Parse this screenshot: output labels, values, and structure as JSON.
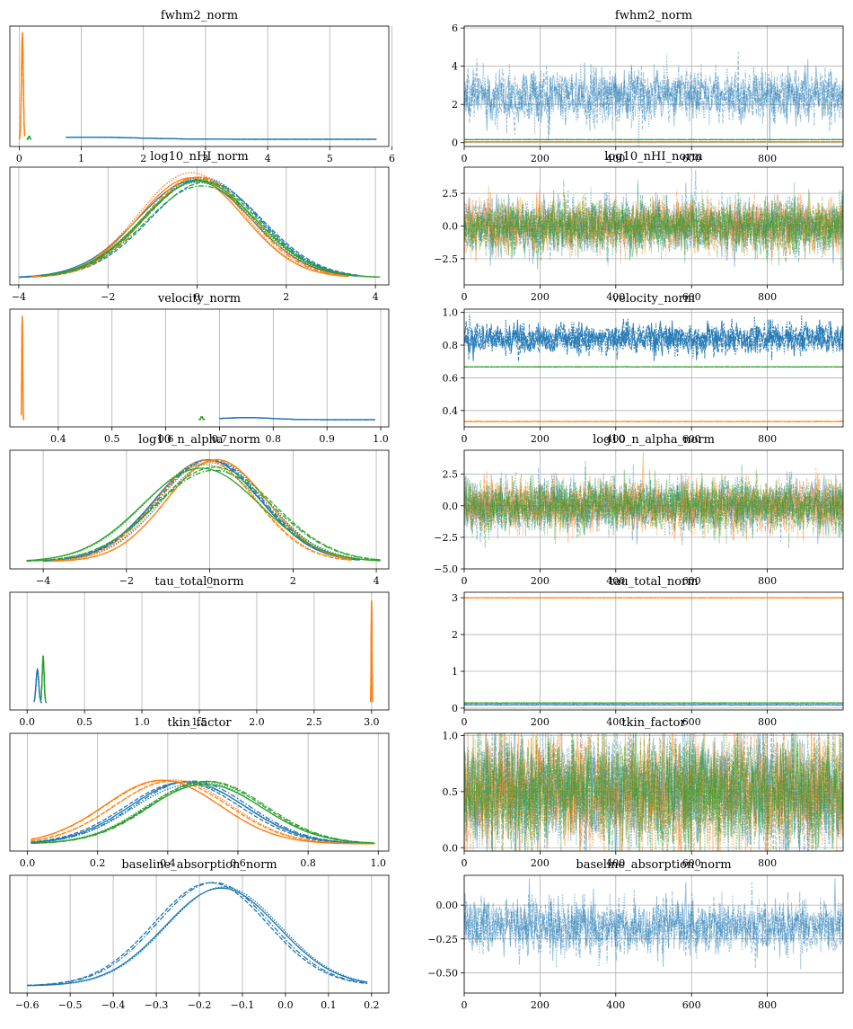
{
  "colors": {
    "chain0": "#1f77b4",
    "chain1": "#ff7f0e",
    "chain2": "#2ca02c",
    "grid": "#b0b0b0",
    "frame": "#000000"
  },
  "chart_data": [
    {
      "type": "line",
      "title": "fwhm2_norm",
      "xlim": [
        -0.15,
        5.95
      ],
      "xticks": [
        "0",
        "1",
        "2",
        "3",
        "4",
        "5",
        "6"
      ],
      "ytick_labels": [],
      "grid": "x",
      "densities": [
        {
          "chain": 0,
          "support": [
            0.75,
            5.75
          ],
          "mode": 1.1,
          "peak": 0.02
        },
        {
          "chain": 1,
          "support": [
            0.0,
            0.09
          ],
          "mode": 0.05,
          "peak": 1.0
        },
        {
          "chain": 2,
          "support": [
            0.12,
            0.19
          ],
          "mode": 0.16,
          "peak": 0.03
        }
      ]
    },
    {
      "type": "line",
      "title": "fwhm2_norm",
      "xlim": [
        0,
        1000
      ],
      "ylim": [
        -0.2,
        6.1
      ],
      "xticks": [
        "0",
        "200",
        "400",
        "600",
        "800"
      ],
      "yticks": [
        "0",
        "2",
        "4",
        "6"
      ],
      "grid": "both",
      "traces": [
        {
          "chain": 0,
          "center": 2.45,
          "spread": 0.7
        },
        {
          "chain": 1,
          "center": 0.05,
          "spread": 0.005
        },
        {
          "chain": 2,
          "center": 0.16,
          "spread": 0.005
        }
      ]
    },
    {
      "type": "line",
      "title": "log10_nHI_norm",
      "xlim": [
        -4.2,
        4.3
      ],
      "xticks": [
        "−4",
        "−2",
        "0",
        "2",
        "4"
      ],
      "ytick_labels": [],
      "grid": "x",
      "densities": [
        {
          "chain": 0,
          "support": [
            -4.0,
            3.6
          ],
          "mode": 0.05,
          "peak": 0.97
        },
        {
          "chain": 1,
          "support": [
            -3.7,
            3.4
          ],
          "mode": -0.05,
          "peak": 1.0
        },
        {
          "chain": 2,
          "support": [
            -3.5,
            4.1
          ],
          "mode": 0.0,
          "peak": 0.93
        }
      ]
    },
    {
      "type": "line",
      "title": "log10_nHI_norm",
      "xlim": [
        0,
        1000
      ],
      "ylim": [
        -4.5,
        4.5
      ],
      "xticks": [
        "0",
        "200",
        "400",
        "600",
        "800"
      ],
      "yticks": [
        "−2.5",
        "0.0",
        "2.5"
      ],
      "grid": "both",
      "traces": [
        {
          "chain": 0,
          "center": 0.0,
          "spread": 1.0
        },
        {
          "chain": 1,
          "center": 0.0,
          "spread": 1.0
        },
        {
          "chain": 2,
          "center": 0.0,
          "spread": 1.0
        }
      ]
    },
    {
      "type": "line",
      "title": "velocity_norm",
      "xlim": [
        0.31,
        1.015
      ],
      "xticks": [
        "0.4",
        "0.5",
        "0.6",
        "0.7",
        "0.8",
        "0.9",
        "1.0"
      ],
      "ytick_labels": [],
      "grid": "x",
      "densities": [
        {
          "chain": 0,
          "support": [
            0.7,
            0.99
          ],
          "mode": 0.75,
          "peak": 0.02
        },
        {
          "chain": 1,
          "support": [
            0.331,
            0.336
          ],
          "mode": 0.333,
          "peak": 1.0
        },
        {
          "chain": 2,
          "support": [
            0.662,
            0.672
          ],
          "mode": 0.667,
          "peak": 0.03
        }
      ]
    },
    {
      "type": "line",
      "title": "velocity_norm",
      "xlim": [
        0,
        1000
      ],
      "ylim": [
        0.3,
        1.02
      ],
      "xticks": [
        "0",
        "200",
        "400",
        "600",
        "800"
      ],
      "yticks": [
        "0.4",
        "0.6",
        "0.8",
        "1.0"
      ],
      "grid": "both",
      "traces": [
        {
          "chain": 0,
          "center": 0.84,
          "spread": 0.045
        },
        {
          "chain": 1,
          "center": 0.333,
          "spread": 0.001
        },
        {
          "chain": 2,
          "center": 0.667,
          "spread": 0.001
        }
      ]
    },
    {
      "type": "line",
      "title": "log10_n_alpha_norm",
      "xlim": [
        -4.8,
        4.3
      ],
      "xticks": [
        "−4",
        "−2",
        "0",
        "2",
        "4"
      ],
      "ytick_labels": [],
      "grid": "x",
      "densities": [
        {
          "chain": 0,
          "support": [
            -4.0,
            3.6
          ],
          "mode": 0.0,
          "peak": 0.97
        },
        {
          "chain": 1,
          "support": [
            -3.8,
            3.4
          ],
          "mode": 0.05,
          "peak": 1.0
        },
        {
          "chain": 2,
          "support": [
            -4.4,
            4.1
          ],
          "mode": -0.05,
          "peak": 0.92
        }
      ]
    },
    {
      "type": "line",
      "title": "log10_n_alpha_norm",
      "xlim": [
        0,
        1000
      ],
      "ylim": [
        -5.0,
        4.4
      ],
      "xticks": [
        "0",
        "200",
        "400",
        "600",
        "800"
      ],
      "yticks": [
        "−5.0",
        "−2.5",
        "0.0",
        "2.5"
      ],
      "grid": "both",
      "traces": [
        {
          "chain": 0,
          "center": 0.0,
          "spread": 1.0
        },
        {
          "chain": 1,
          "center": 0.0,
          "spread": 1.0
        },
        {
          "chain": 2,
          "center": 0.0,
          "spread": 1.0
        }
      ]
    },
    {
      "type": "line",
      "title": "tau_total_norm",
      "xlim": [
        -0.15,
        3.15
      ],
      "xticks": [
        "0.0",
        "0.5",
        "1.0",
        "1.5",
        "2.0",
        "2.5",
        "3.0"
      ],
      "ytick_labels": [],
      "grid": "x",
      "densities": [
        {
          "chain": 0,
          "support": [
            0.06,
            0.13
          ],
          "mode": 0.09,
          "peak": 0.33
        },
        {
          "chain": 1,
          "support": [
            2.99,
            3.01
          ],
          "mode": 3.0,
          "peak": 1.0
        },
        {
          "chain": 2,
          "support": [
            0.12,
            0.17
          ],
          "mode": 0.14,
          "peak": 0.45
        }
      ]
    },
    {
      "type": "line",
      "title": "tau_total_norm",
      "xlim": [
        0,
        1000
      ],
      "ylim": [
        -0.05,
        3.15
      ],
      "xticks": [
        "0",
        "200",
        "400",
        "600",
        "800"
      ],
      "yticks": [
        "0",
        "1",
        "2",
        "3"
      ],
      "grid": "both",
      "traces": [
        {
          "chain": 0,
          "center": 0.09,
          "spread": 0.006
        },
        {
          "chain": 1,
          "center": 3.0,
          "spread": 0.003
        },
        {
          "chain": 2,
          "center": 0.14,
          "spread": 0.005
        }
      ]
    },
    {
      "type": "line",
      "title": "tkin_factor",
      "xlim": [
        -0.05,
        1.03
      ],
      "xticks": [
        "0.0",
        "0.2",
        "0.4",
        "0.6",
        "0.8",
        "1.0"
      ],
      "ytick_labels": [],
      "grid": "x",
      "densities": [
        {
          "chain": 0,
          "support": [
            0.01,
            0.99
          ],
          "mode": 0.45,
          "peak": 0.6
        },
        {
          "chain": 1,
          "support": [
            0.01,
            0.99
          ],
          "mode": 0.4,
          "peak": 0.63
        },
        {
          "chain": 2,
          "support": [
            0.01,
            0.99
          ],
          "mode": 0.5,
          "peak": 0.6
        }
      ]
    },
    {
      "type": "line",
      "title": "tkin_factor",
      "xlim": [
        0,
        1000
      ],
      "ylim": [
        -0.03,
        1.02
      ],
      "xticks": [
        "0",
        "200",
        "400",
        "600",
        "800"
      ],
      "yticks": [
        "0.0",
        "0.5",
        "1.0"
      ],
      "grid": "both",
      "traces": [
        {
          "chain": 0,
          "center": 0.5,
          "spread": 0.25
        },
        {
          "chain": 1,
          "center": 0.5,
          "spread": 0.25
        },
        {
          "chain": 2,
          "center": 0.5,
          "spread": 0.25
        }
      ]
    },
    {
      "type": "line",
      "title": "baseline_absorption_norm",
      "xlim": [
        -0.64,
        0.24
      ],
      "xticks": [
        "−0.6",
        "−0.5",
        "−0.4",
        "−0.3",
        "−0.2",
        "−0.1",
        "0.0",
        "0.1",
        "0.2"
      ],
      "ytick_labels": [],
      "grid": "x",
      "densities": [
        {
          "chain": 0,
          "support": [
            -0.6,
            0.19
          ],
          "mode": -0.16,
          "peak": 1.0
        }
      ]
    },
    {
      "type": "line",
      "title": "baseline_absorption_norm",
      "xlim": [
        0,
        1000
      ],
      "ylim": [
        -0.65,
        0.22
      ],
      "xticks": [
        "0",
        "200",
        "400",
        "600",
        "800"
      ],
      "yticks": [
        "−0.50",
        "−0.25",
        "0.00"
      ],
      "grid": "both",
      "traces": [
        {
          "chain": 0,
          "center": -0.16,
          "spread": 0.1
        }
      ]
    }
  ]
}
